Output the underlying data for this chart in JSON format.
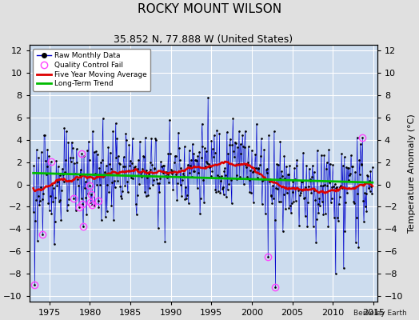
{
  "title": "ROCKY MOUNT WILSON",
  "subtitle": "35.852 N, 77.888 W (United States)",
  "ylabel": "Temperature Anomaly (°C)",
  "credit": "Berkeley Earth",
  "xlim": [
    1972.5,
    2015.5
  ],
  "ylim": [
    -10.5,
    12.5
  ],
  "yticks": [
    -10,
    -8,
    -6,
    -4,
    -2,
    0,
    2,
    4,
    6,
    8,
    10,
    12
  ],
  "xticks": [
    1975,
    1980,
    1985,
    1990,
    1995,
    2000,
    2005,
    2010,
    2015
  ],
  "background_color": "#e0e0e0",
  "plot_bg_color": "#ccdcee",
  "grid_color": "#ffffff",
  "bar_color": "#7799dd",
  "line_color": "#0000cc",
  "ma_color": "#dd0000",
  "trend_color": "#00bb00",
  "qc_color": "#ff44ff",
  "title_fontsize": 11,
  "subtitle_fontsize": 9,
  "tick_fontsize": 8,
  "ylabel_fontsize": 8
}
